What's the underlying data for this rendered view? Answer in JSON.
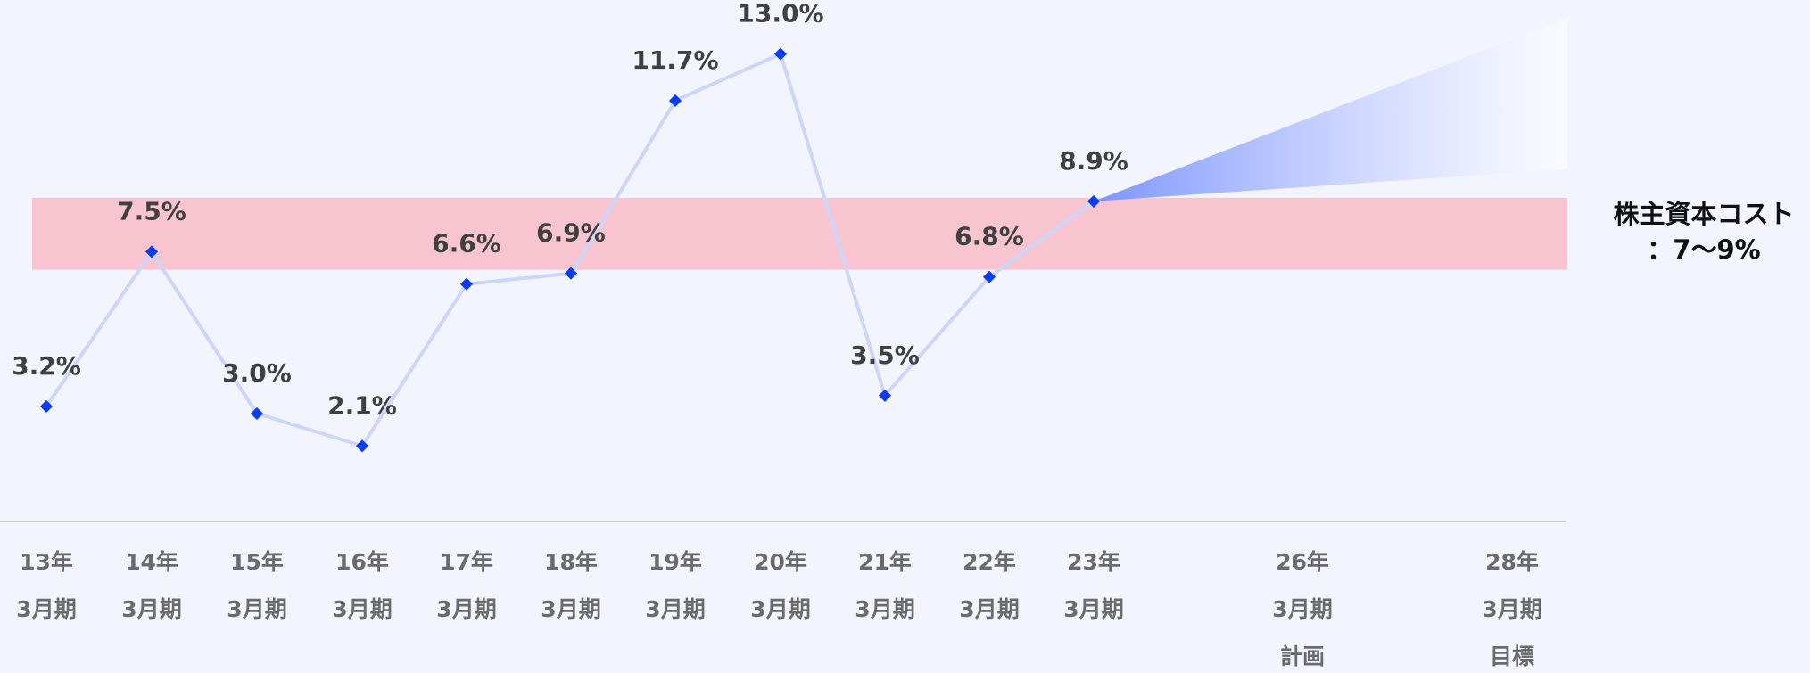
{
  "chart_data": {
    "type": "line",
    "categories": [
      [
        "13年",
        "3月期"
      ],
      [
        "14年",
        "3月期"
      ],
      [
        "15年",
        "3月期"
      ],
      [
        "16年",
        "3月期"
      ],
      [
        "17年",
        "3月期"
      ],
      [
        "18年",
        "3月期"
      ],
      [
        "19年",
        "3月期"
      ],
      [
        "20年",
        "3月期"
      ],
      [
        "21年",
        "3月期"
      ],
      [
        "22年",
        "3月期"
      ],
      [
        "23年",
        "3月期"
      ],
      [
        "26年",
        "3月期",
        "計画"
      ],
      [
        "28年",
        "3月期",
        "目標"
      ]
    ],
    "series": [
      {
        "color": "#0a3cf0",
        "values": [
          3.2,
          7.5,
          3.0,
          2.1,
          6.6,
          6.9,
          11.7,
          13.0,
          3.5,
          6.8,
          8.9,
          null,
          null
        ],
        "value_labels": [
          "3.2%",
          "7.5%",
          "3.0%",
          "2.1%",
          "6.6%",
          "6.9%",
          "11.7%",
          "13.0%",
          "3.5%",
          "6.8%",
          "8.9%",
          null,
          null
        ]
      }
    ],
    "ylim": [
      0,
      14.5
    ],
    "band": {
      "range": [
        7,
        9
      ],
      "color": "#f8c4cf",
      "label": [
        "株主資本コスト",
        "：7〜9%"
      ]
    },
    "target_range": [
      9.8,
      14.0
    ]
  }
}
